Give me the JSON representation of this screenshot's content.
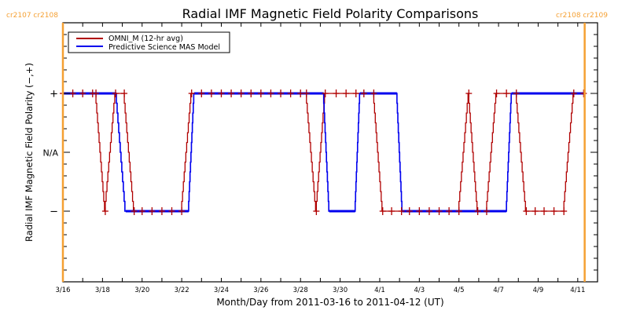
{
  "chart_data": {
    "type": "line",
    "title": "Radial IMF Magnetic Field Polarity Comparisons",
    "xlabel": "Month/Day from 2011-03-16 to 2011-04-12 (UT)",
    "ylabel": "Radial IMF Magnetic Field Polarity (−,+)",
    "x_units": "days since 2011-03-16 00:00 UT",
    "xlim": [
      0,
      27
    ],
    "ylim": [
      -2,
      2
    ],
    "x_tick_labels": [
      {
        "day": 0,
        "label": "3/16"
      },
      {
        "day": 2,
        "label": "3/18"
      },
      {
        "day": 4,
        "label": "3/20"
      },
      {
        "day": 6,
        "label": "3/22"
      },
      {
        "day": 8,
        "label": "3/24"
      },
      {
        "day": 10,
        "label": "3/26"
      },
      {
        "day": 12,
        "label": "3/28"
      },
      {
        "day": 14,
        "label": "3/30"
      },
      {
        "day": 16,
        "label": "4/1"
      },
      {
        "day": 18,
        "label": "4/3"
      },
      {
        "day": 20,
        "label": "4/5"
      },
      {
        "day": 22,
        "label": "4/7"
      },
      {
        "day": 24,
        "label": "4/9"
      },
      {
        "day": 26,
        "label": "4/11"
      }
    ],
    "y_tick_labels": [
      {
        "value": 1,
        "label": "+"
      },
      {
        "value": 0,
        "label": "N/A"
      },
      {
        "value": -1,
        "label": "−"
      }
    ],
    "carrington_markers": [
      {
        "day": 0,
        "left_label": "cr2107",
        "right_label": "cr2108",
        "color": "#f5a033"
      },
      {
        "day": 26.35,
        "left_label": "cr2108",
        "right_label": "cr2109",
        "color": "#f5a033"
      }
    ],
    "legend": {
      "placement": "top-left",
      "entries": [
        {
          "name": "OMNI_M (12-hr avg)",
          "color": "#b00000"
        },
        {
          "name": "Predictive Science MAS Model",
          "color": "#0000ee"
        }
      ]
    },
    "series": [
      {
        "name": "OMNI_M (12-hr avg)",
        "color": "#b00000",
        "markers": true,
        "points": [
          [
            0,
            1
          ],
          [
            0.5,
            1
          ],
          [
            1.0,
            1
          ],
          [
            1.5,
            1
          ],
          [
            1.67,
            1
          ],
          [
            2.14,
            -1
          ],
          [
            2.66,
            1
          ],
          [
            3.1,
            1
          ],
          [
            3.6,
            -1
          ],
          [
            4.0,
            -1
          ],
          [
            4.5,
            -1
          ],
          [
            5.0,
            -1
          ],
          [
            5.5,
            -1
          ],
          [
            6.0,
            -1
          ],
          [
            6.5,
            1
          ],
          [
            7.0,
            1
          ],
          [
            7.5,
            1
          ],
          [
            8.0,
            1
          ],
          [
            8.5,
            1
          ],
          [
            9.0,
            1
          ],
          [
            9.5,
            1
          ],
          [
            10.0,
            1
          ],
          [
            10.5,
            1
          ],
          [
            11.0,
            1
          ],
          [
            11.5,
            1
          ],
          [
            12.0,
            1
          ],
          [
            12.3,
            1
          ],
          [
            12.8,
            -1
          ],
          [
            13.25,
            1
          ],
          [
            13.8,
            1
          ],
          [
            14.3,
            1
          ],
          [
            14.8,
            1
          ],
          [
            15.2,
            1
          ],
          [
            15.7,
            1
          ],
          [
            16.15,
            -1
          ],
          [
            16.6,
            -1
          ],
          [
            17.1,
            -1
          ],
          [
            17.5,
            -1
          ],
          [
            18.0,
            -1
          ],
          [
            18.5,
            -1
          ],
          [
            19.0,
            -1
          ],
          [
            19.5,
            -1
          ],
          [
            20.0,
            -1
          ],
          [
            20.5,
            1
          ],
          [
            20.95,
            -1
          ],
          [
            21.4,
            -1
          ],
          [
            21.9,
            1
          ],
          [
            22.4,
            1
          ],
          [
            22.9,
            1
          ],
          [
            23.4,
            -1
          ],
          [
            23.85,
            -1
          ],
          [
            24.3,
            -1
          ],
          [
            24.8,
            -1
          ],
          [
            25.3,
            -1
          ],
          [
            25.8,
            1
          ],
          [
            26.3,
            1
          ]
        ]
      },
      {
        "name": "Predictive Science MAS Model",
        "color": "#0000ee",
        "markers": false,
        "points": [
          [
            0,
            1
          ],
          [
            2.7,
            1
          ],
          [
            3.17,
            -1
          ],
          [
            6.35,
            -1
          ],
          [
            6.63,
            1
          ],
          [
            13.17,
            1
          ],
          [
            13.45,
            -1
          ],
          [
            14.76,
            -1
          ],
          [
            15.0,
            1
          ],
          [
            16.87,
            1
          ],
          [
            17.14,
            -1
          ],
          [
            22.4,
            -1
          ],
          [
            22.66,
            1
          ],
          [
            26.35,
            1
          ]
        ]
      }
    ]
  }
}
